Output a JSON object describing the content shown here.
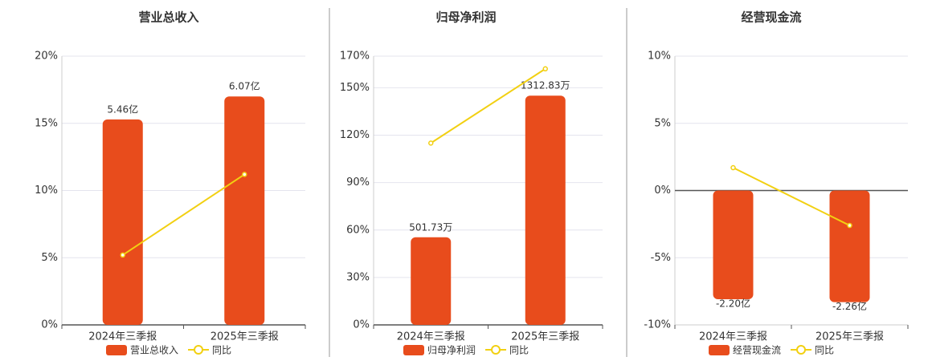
{
  "chart_data": [
    {
      "type": "bar",
      "title": "营业总收入",
      "categories": [
        "2024年三季报",
        "2025年三季报"
      ],
      "series": [
        {
          "name": "营业总收入",
          "type": "bar",
          "color": "#e84c1c",
          "axis": "y2",
          "values": [
            5.46,
            6.07
          ],
          "value_labels": [
            "5.46亿",
            "6.07亿"
          ]
        },
        {
          "name": "同比",
          "type": "line",
          "color": "#f2d012",
          "values": [
            5.2,
            11.2
          ]
        }
      ],
      "ylim": [
        0,
        20
      ],
      "yticks": [
        {
          "value": 0,
          "label": "0%"
        },
        {
          "value": 5,
          "label": "5%"
        },
        {
          "value": 10,
          "label": "10%"
        },
        {
          "value": 15,
          "label": "15%"
        },
        {
          "value": 20,
          "label": "20%"
        }
      ],
      "y2lim": [
        0,
        7.14
      ],
      "grid": true,
      "legend": "bottom"
    },
    {
      "type": "bar",
      "title": "归母净利润",
      "categories": [
        "2024年三季报",
        "2025年三季报"
      ],
      "series": [
        {
          "name": "归母净利润",
          "type": "bar",
          "color": "#e84c1c",
          "axis": "y2",
          "values": [
            501.73,
            1312.83
          ],
          "value_labels": [
            "501.73万",
            "1312.83万"
          ]
        },
        {
          "name": "同比",
          "type": "line",
          "color": "#f2d012",
          "values": [
            115,
            162
          ]
        }
      ],
      "ylim": [
        0,
        170
      ],
      "yticks": [
        {
          "value": 0,
          "label": "0%"
        },
        {
          "value": 30,
          "label": "30%"
        },
        {
          "value": 60,
          "label": "60%"
        },
        {
          "value": 90,
          "label": "90%"
        },
        {
          "value": 120,
          "label": "120%"
        },
        {
          "value": 150,
          "label": "150%"
        },
        {
          "value": 170,
          "label": "170%"
        }
      ],
      "y2lim": [
        0,
        1539
      ],
      "grid": true,
      "legend": "bottom"
    },
    {
      "type": "bar",
      "title": "经营现金流",
      "categories": [
        "2024年三季报",
        "2025年三季报"
      ],
      "series": [
        {
          "name": "经营现金流",
          "type": "bar",
          "color": "#e84c1c",
          "axis": "y2",
          "values": [
            -2.2,
            -2.26
          ],
          "value_labels": [
            "-2.20亿",
            "-2.26亿"
          ]
        },
        {
          "name": "同比",
          "type": "line",
          "color": "#f2d012",
          "values": [
            1.7,
            -2.6
          ]
        }
      ],
      "ylim": [
        -10,
        10
      ],
      "yticks": [
        {
          "value": -10,
          "label": "-10%"
        },
        {
          "value": -5,
          "label": "-5%"
        },
        {
          "value": 0,
          "label": "0%"
        },
        {
          "value": 5,
          "label": "5%"
        },
        {
          "value": 10,
          "label": "10%"
        }
      ],
      "y2lim": [
        -2.72,
        2.72
      ],
      "grid": true,
      "legend": "bottom"
    }
  ]
}
